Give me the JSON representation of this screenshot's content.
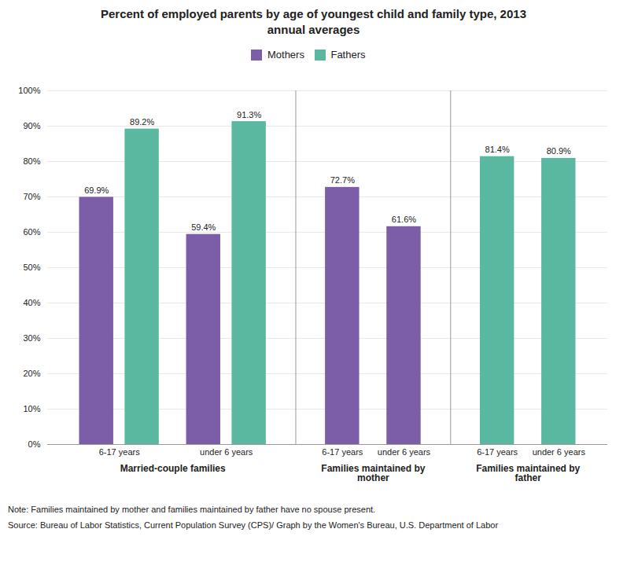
{
  "chart_data": {
    "type": "bar",
    "title": "Percent of employed parents by age of youngest child and family type, 2013\nannual averages",
    "categories": [
      "6-17 years",
      "under 6 years",
      "6-17 years",
      "under 6 years",
      "6-17 years",
      "under 6 years"
    ],
    "groups": [
      "Married-couple families",
      "Married-couple families",
      "Families maintained by\nmother",
      "Families maintained by\nmother",
      "Families maintained by\nfather",
      "Families maintained by\nfather"
    ],
    "series": [
      {
        "name": "Mothers",
        "color": "#7B5EA7",
        "values": [
          69.9,
          59.4,
          72.7,
          61.6,
          null,
          null
        ],
        "value_labels": [
          "69.9%",
          "59.4%",
          "72.7%",
          "61.6%",
          null,
          null
        ]
      },
      {
        "name": "Fathers",
        "color": "#5AB8A0",
        "values": [
          89.2,
          91.3,
          null,
          null,
          81.4,
          80.9
        ],
        "value_labels": [
          "89.2%",
          "91.3%",
          null,
          null,
          "81.4%",
          "80.9%"
        ]
      }
    ],
    "ylim": [
      0,
      100
    ],
    "yticks": [
      {
        "value": 0,
        "label": "0%"
      },
      {
        "value": 10,
        "label": "10%"
      },
      {
        "value": 20,
        "label": "20%"
      },
      {
        "value": 30,
        "label": "30%"
      },
      {
        "value": 40,
        "label": "40%"
      },
      {
        "value": 50,
        "label": "50%"
      },
      {
        "value": 60,
        "label": "60%"
      },
      {
        "value": 70,
        "label": "70%"
      },
      {
        "value": 80,
        "label": "80%"
      },
      {
        "value": 90,
        "label": "90%"
      },
      {
        "value": 100,
        "label": "100%"
      }
    ],
    "grid": true,
    "legend": "top",
    "data_labels": true,
    "note": "Note: Families maintained by mother and families maintained by father have no spouse present.",
    "source": "Source: Bureau of Labor Statistics, Current Population Survey (CPS)/ Graph by the Women's Bureau, U.S. Department of Labor"
  }
}
